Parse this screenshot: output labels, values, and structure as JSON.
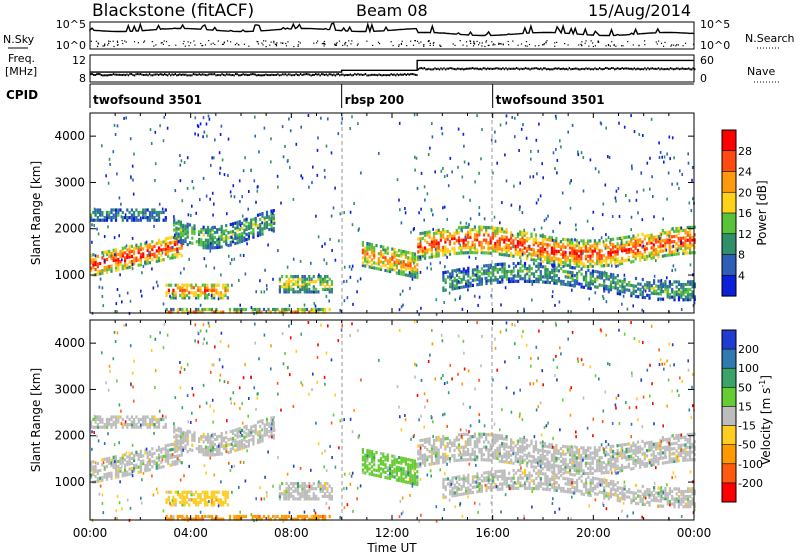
{
  "header": {
    "title": "Blackstone (fitACF)",
    "beam": "Beam 08",
    "date": "15/Aug/2014"
  },
  "side_labels": {
    "nsky": "N.Sky",
    "nsearch": "N.Search",
    "freq_line1": "Freq.",
    "freq_line2": "[MHz]",
    "nave": "Nave",
    "cpid": "CPID"
  },
  "chart_data": [
    {
      "type": "line",
      "name": "noise",
      "left_ticks": [
        "10^5",
        "10^0"
      ],
      "right_ticks": [
        "10^5",
        "10^0"
      ]
    },
    {
      "type": "line",
      "name": "frequency",
      "left_ticks": [
        "12",
        "8"
      ],
      "right_ticks": [
        "60",
        "0"
      ],
      "freq_segments": [
        {
          "start_h": 0,
          "end_h": 10,
          "value": 10.2
        },
        {
          "start_h": 10,
          "end_h": 13,
          "value": 10.6
        },
        {
          "start_h": 13,
          "end_h": 24,
          "value": 12.8
        }
      ]
    },
    {
      "type": "table",
      "name": "cpid",
      "segments": [
        {
          "label": "twofsound 3501",
          "start_h": 0,
          "end_h": 10
        },
        {
          "label": "rbsp 200",
          "start_h": 10,
          "end_h": 16
        },
        {
          "label": "twofsound 3501",
          "start_h": 16,
          "end_h": 24
        }
      ]
    },
    {
      "type": "heatmap",
      "name": "power",
      "ylabel": "Slant Range [km]",
      "yticks": [
        1000,
        2000,
        3000,
        4000
      ],
      "ylim": [
        180,
        4500
      ],
      "colorbar_label": "Power [dB]",
      "colorbar_ticks": [
        "4",
        "8",
        "12",
        "16",
        "20",
        "24",
        "28"
      ],
      "colorbar_colors": [
        "#0a1fd8",
        "#2e5fb8",
        "#2f8f6a",
        "#58c23a",
        "#ffd21a",
        "#ff9a10",
        "#ff4a10",
        "#ff0000"
      ]
    },
    {
      "type": "heatmap",
      "name": "velocity",
      "ylabel": "Slant Range [km]",
      "yticks": [
        1000,
        2000,
        3000,
        4000
      ],
      "ylim": [
        180,
        4500
      ],
      "colorbar_label": "Velocity [m s",
      "colorbar_label_sup": "-1",
      "colorbar_label_end": "]",
      "colorbar_ticks": [
        "200",
        "100",
        "50",
        "15",
        "-15",
        "-50",
        "-100",
        "-200"
      ],
      "colorbar_colors": [
        "#1f3bd0",
        "#2f7ab0",
        "#39a36a",
        "#66cc33",
        "#bdbdbd",
        "#ffcc22",
        "#ff9900",
        "#ff5a10",
        "#ff0000"
      ]
    }
  ],
  "xaxis": {
    "label": "Time UT",
    "ticks": [
      "00:00",
      "04:00",
      "08:00",
      "12:00",
      "16:00",
      "20:00",
      "00:00"
    ],
    "range_h": [
      0,
      24
    ]
  }
}
